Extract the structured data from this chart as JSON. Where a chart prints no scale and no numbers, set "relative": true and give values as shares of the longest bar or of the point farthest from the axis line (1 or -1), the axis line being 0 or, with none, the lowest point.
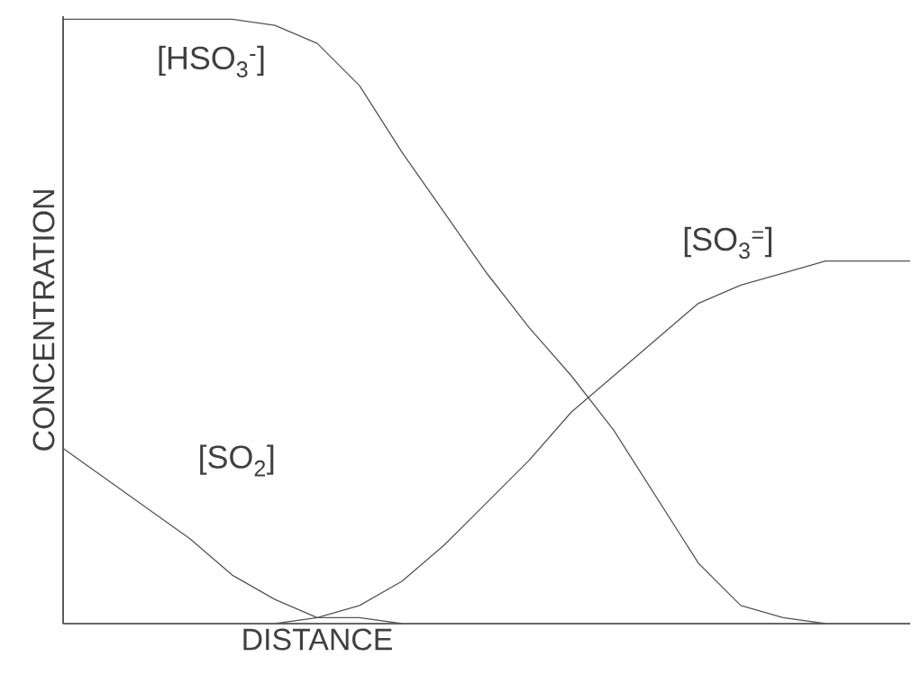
{
  "chart_data": {
    "type": "line",
    "relative": true,
    "xlabel": "DISTANCE",
    "ylabel": "CONCENTRATION",
    "legend": false,
    "marker": "none",
    "line_style": "solid",
    "categories": [
      null,
      null,
      null,
      null,
      null,
      null,
      null,
      null,
      null,
      null,
      null,
      null,
      null,
      null,
      null,
      null,
      null,
      null,
      null,
      null,
      null
    ],
    "series": [
      {
        "name": "[HSO$_{3}$$^{-}$]",
        "color": "#555555",
        "values": [
          1,
          1,
          1,
          1,
          1,
          0.99,
          0.96,
          0.89,
          0.78,
          0.68,
          0.58,
          0.49,
          0.41,
          0.32,
          0.21,
          0.1,
          0.03,
          0.01,
          0,
          null,
          null
        ]
      },
      {
        "name": "[SO$_{3}$$^{=}$]",
        "color": "#555555",
        "values": [
          null,
          null,
          null,
          null,
          null,
          0,
          0.01,
          0.03,
          0.07,
          0.13,
          0.2,
          0.27,
          0.35,
          0.41,
          0.47,
          0.53,
          0.56,
          0.58,
          0.6,
          0.6,
          0.6
        ]
      },
      {
        "name": "[SO$_{2}$]",
        "color": "#555555",
        "values": [
          0.29,
          0.24,
          0.19,
          0.14,
          0.08,
          0.04,
          0.01,
          0.01,
          0,
          null,
          null,
          null,
          null,
          null,
          null,
          null,
          null,
          null,
          null,
          null,
          null
        ]
      }
    ]
  }
}
